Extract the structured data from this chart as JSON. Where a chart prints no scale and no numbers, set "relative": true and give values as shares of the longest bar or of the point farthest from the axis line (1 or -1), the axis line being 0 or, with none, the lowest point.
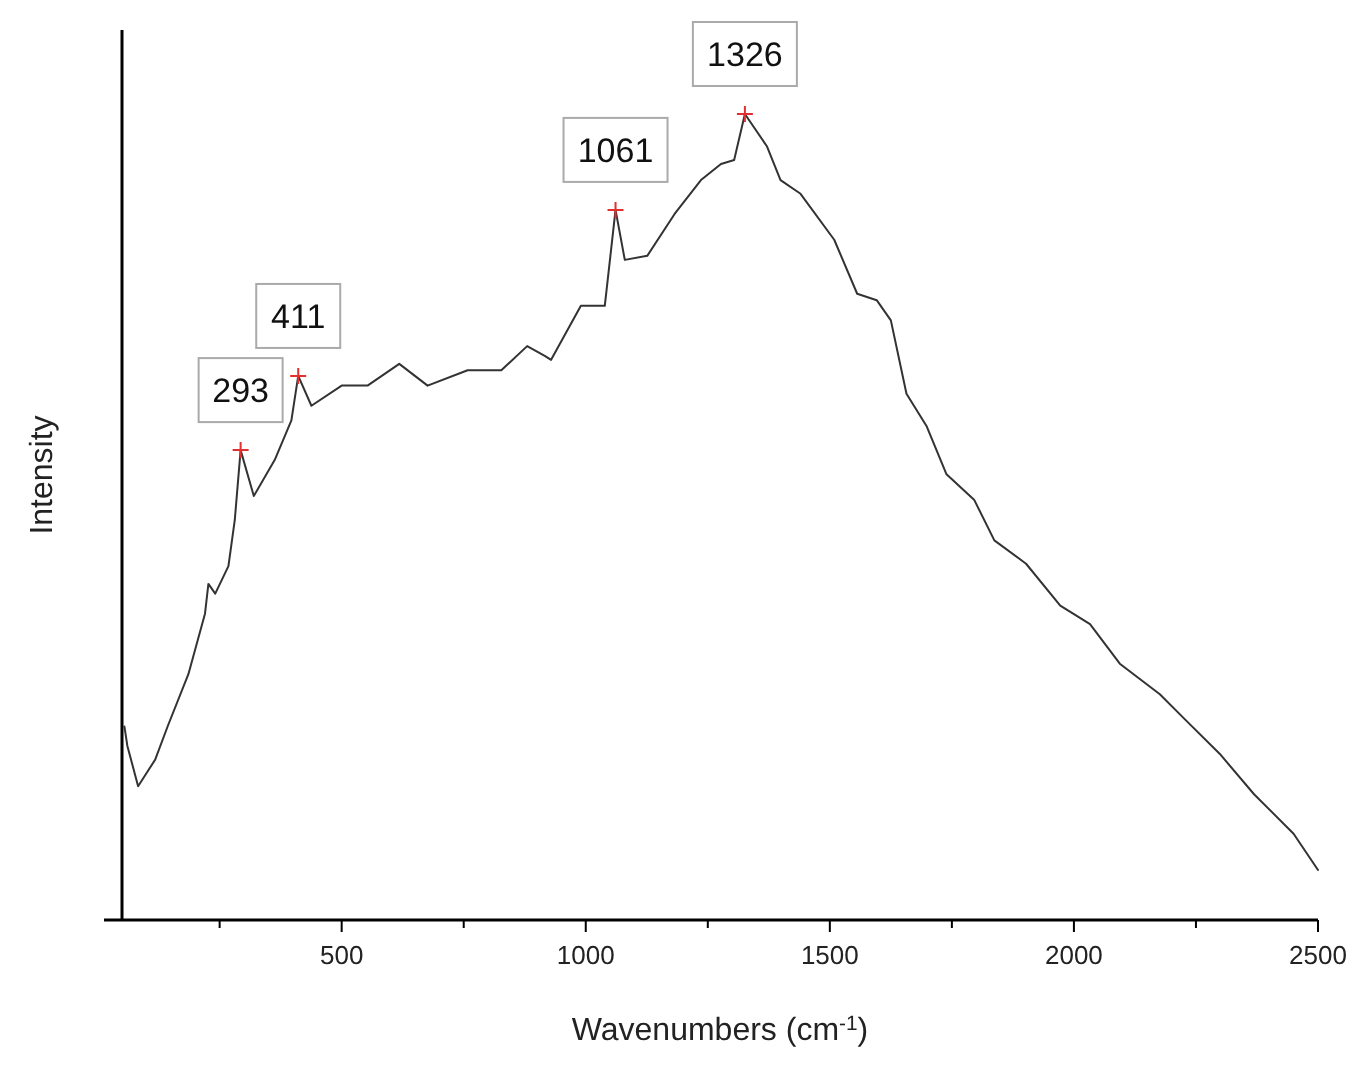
{
  "chart_data": {
    "type": "line",
    "relative": true,
    "xlabel": "Wavenumbers (cm$^{-1}$)",
    "ylabel": "Intensity",
    "xlim": [
      50,
      2500
    ],
    "xticks": [
      {
        "value": 250,
        "label": null
      },
      500,
      {
        "value": 750,
        "label": null
      },
      1000,
      {
        "value": 1250,
        "label": null
      },
      1500,
      {
        "value": 1750,
        "label": null
      },
      2000,
      {
        "value": 2250,
        "label": null
      },
      2500
    ],
    "series": [
      {
        "color": "#333333",
        "x": [
          55,
          61,
          83,
          118,
          144,
          186,
          220,
          227,
          241,
          268,
          281,
          293,
          320,
          363,
          397,
          411,
          438,
          500,
          553,
          618,
          676,
          758,
          827,
          880,
          916,
          929,
          990,
          1039,
          1061,
          1080,
          1126,
          1182,
          1236,
          1277,
          1304,
          1326,
          1371,
          1399,
          1440,
          1509,
          1556,
          1596,
          1625,
          1657,
          1698,
          1739,
          1796,
          1837,
          1902,
          1972,
          2033,
          2094,
          2176,
          2229,
          2299,
          2369,
          2450,
          2500
        ],
        "values": [
          0.24,
          0.216,
          0.166,
          0.199,
          0.241,
          0.305,
          0.38,
          0.417,
          0.405,
          0.439,
          0.496,
          0.583,
          0.526,
          0.571,
          0.62,
          0.675,
          0.638,
          0.663,
          0.663,
          0.69,
          0.663,
          0.682,
          0.682,
          0.712,
          0.7,
          0.695,
          0.762,
          0.762,
          0.881,
          0.819,
          0.824,
          0.876,
          0.918,
          0.938,
          0.943,
          1,
          0.96,
          0.918,
          0.901,
          0.844,
          0.777,
          0.769,
          0.744,
          0.653,
          0.613,
          0.553,
          0.521,
          0.471,
          0.442,
          0.39,
          0.367,
          0.318,
          0.28,
          0.248,
          0.206,
          0.156,
          0.107,
          0.062
        ]
      }
    ],
    "annotations": [
      {
        "text": "293",
        "x": 293,
        "y": 0.583
      },
      {
        "text": "411",
        "x": 411,
        "y": 0.675
      },
      {
        "text": "1061",
        "x": 1061,
        "y": 0.881
      },
      {
        "text": "1326",
        "x": 1326,
        "y": 1
      }
    ],
    "grid": false,
    "line_style": "solid"
  }
}
